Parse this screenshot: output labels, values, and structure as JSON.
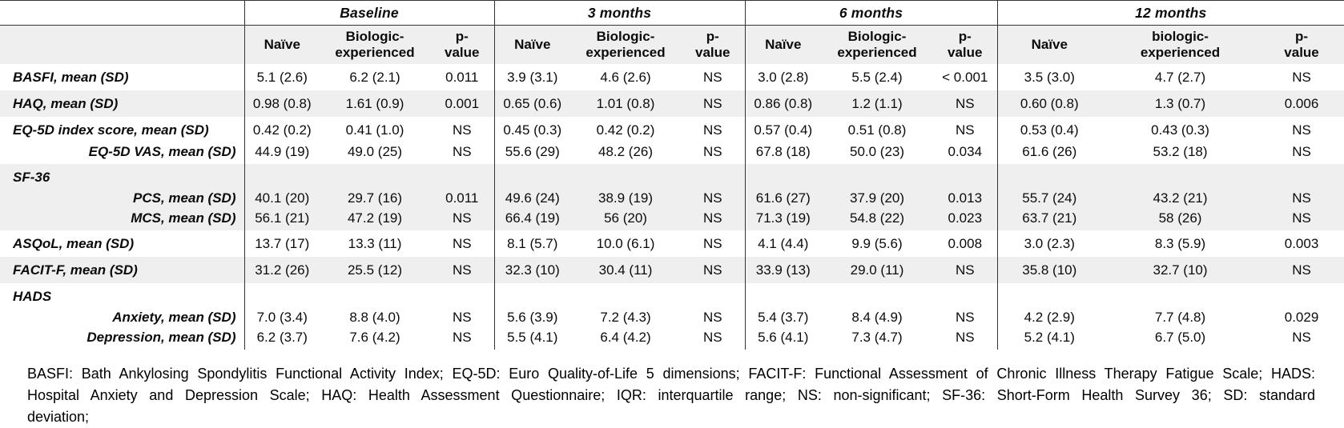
{
  "table": {
    "groups": [
      {
        "label": "Baseline",
        "columns": [
          "Naïve",
          "Biologic-\nexperienced",
          "p-\nvalue"
        ]
      },
      {
        "label": "3 months",
        "columns": [
          "Naïve",
          "Biologic-\nexperienced",
          "p-\nvalue"
        ]
      },
      {
        "label": "6 months",
        "columns": [
          "Naïve",
          "Biologic-\nexperienced",
          "p-\nvalue"
        ]
      },
      {
        "label": "12 months",
        "columns": [
          "Naïve",
          "biologic-\nexperienced",
          "p-\nvalue"
        ]
      }
    ],
    "rows": [
      {
        "label": "BASFI, mean (SD)",
        "type": "single",
        "align": "left",
        "shade": false,
        "cells": [
          "5.1 (2.6)",
          "6.2 (2.1)",
          "0.011",
          "3.9 (3.1)",
          "4.6 (2.6)",
          "NS",
          "3.0 (2.8)",
          "5.5 (2.4)",
          "< 0.001",
          "3.5 (3.0)",
          "4.7 (2.7)",
          "NS"
        ]
      },
      {
        "label": "HAQ, mean (SD)",
        "type": "single",
        "align": "left",
        "shade": true,
        "cells": [
          "0.98 (0.8)",
          "1.61 (0.9)",
          "0.001",
          "0.65 (0.6)",
          "1.01 (0.8)",
          "NS",
          "0.86 (0.8)",
          "1.2 (1.1)",
          "NS",
          "0.60 (0.8)",
          "1.3 (0.7)",
          "0.006"
        ]
      },
      {
        "label": "EQ-5D index score, mean (SD)",
        "type": "group-first",
        "align": "left",
        "shade": false,
        "cells": [
          "0.42 (0.2)",
          "0.41 (1.0)",
          "NS",
          "0.45 (0.3)",
          "0.42 (0.2)",
          "NS",
          "0.57 (0.4)",
          "0.51 (0.8)",
          "NS",
          "0.53 (0.4)",
          "0.43 (0.3)",
          "NS"
        ]
      },
      {
        "label": "EQ-5D VAS, mean (SD)",
        "type": "group-last",
        "align": "right",
        "shade": false,
        "cells": [
          "44.9 (19)",
          "49.0 (25)",
          "NS",
          "55.6 (29)",
          "48.2 (26)",
          "NS",
          "67.8 (18)",
          "50.0 (23)",
          "0.034",
          "61.6 (26)",
          "53.2 (18)",
          "NS"
        ]
      },
      {
        "label": "SF-36",
        "type": "section",
        "align": "left",
        "shade": true,
        "cells": [
          "",
          "",
          "",
          "",
          "",
          "",
          "",
          "",
          "",
          "",
          "",
          ""
        ]
      },
      {
        "label": "PCS, mean (SD)",
        "type": "sub",
        "align": "right",
        "shade": true,
        "cells": [
          "40.1 (20)",
          "29.7 (16)",
          "0.011",
          "49.6 (24)",
          "38.9 (19)",
          "NS",
          "61.6 (27)",
          "37.9 (20)",
          "0.013",
          "55.7 (24)",
          "43.2 (21)",
          "NS"
        ]
      },
      {
        "label": "MCS, mean (SD)",
        "type": "sub-last",
        "align": "right",
        "shade": true,
        "cells": [
          "56.1 (21)",
          "47.2 (19)",
          "NS",
          "66.4 (19)",
          "56 (20)",
          "NS",
          "71.3 (19)",
          "54.8 (22)",
          "0.023",
          "63.7 (21)",
          "58 (26)",
          "NS"
        ]
      },
      {
        "label": "ASQoL, mean (SD)",
        "type": "single",
        "align": "left",
        "shade": false,
        "cells": [
          "13.7 (17)",
          "13.3 (11)",
          "NS",
          "8.1 (5.7)",
          "10.0 (6.1)",
          "NS",
          "4.1 (4.4)",
          "9.9 (5.6)",
          "0.008",
          "3.0 (2.3)",
          "8.3 (5.9)",
          "0.003"
        ]
      },
      {
        "label": "FACIT-F, mean (SD)",
        "type": "single",
        "align": "left",
        "shade": true,
        "cells": [
          "31.2 (26)",
          "25.5 (12)",
          "NS",
          "32.3 (10)",
          "30.4 (11)",
          "NS",
          "33.9 (13)",
          "29.0 (11)",
          "NS",
          "35.8 (10)",
          "32.7 (10)",
          "NS"
        ]
      },
      {
        "label": "HADS",
        "type": "section",
        "align": "left",
        "shade": false,
        "cells": [
          "",
          "",
          "",
          "",
          "",
          "",
          "",
          "",
          "",
          "",
          "",
          ""
        ]
      },
      {
        "label": "Anxiety, mean (SD)",
        "type": "sub",
        "align": "right",
        "shade": false,
        "cells": [
          "7.0 (3.4)",
          "8.8 (4.0)",
          "NS",
          "5.6 (3.9)",
          "7.2 (4.3)",
          "NS",
          "5.4 (3.7)",
          "8.4 (4.9)",
          "NS",
          "4.2 (2.9)",
          "7.7 (4.8)",
          "0.029"
        ]
      },
      {
        "label": "Depression, mean (SD)",
        "type": "sub-last",
        "align": "right",
        "shade": false,
        "cells": [
          "6.2 (3.7)",
          "7.6 (4.2)",
          "NS",
          "5.5 (4.1)",
          "6.4 (4.2)",
          "NS",
          "5.6 (4.1)",
          "7.3 (4.7)",
          "NS",
          "5.2 (4.1)",
          "6.7 (5.0)",
          "NS"
        ]
      }
    ]
  },
  "footnote": {
    "lines": [
      "BASFI: Bath Ankylosing Spondylitis Functional Activity Index; EQ-5D: Euro Quality-of-Life 5 dimensions; FACIT-F: Functional Assessment of Chronic Illness Therapy Fatigue Scale;  HADS:",
      "Hospital Anxiety and Depression Scale; HAQ: Health Assessment Questionnaire; IQR: interquartile range; NS: non-significant; SF-36: Short-Form Health Survey 36; SD: standard",
      "deviation;"
    ]
  }
}
